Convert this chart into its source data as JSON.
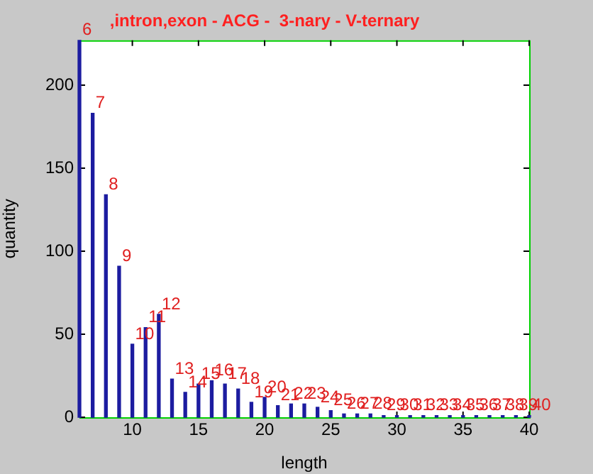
{
  "chart_data": {
    "type": "bar",
    "title": ",intron,exon - ACG -  3-nary - V-ternary",
    "xlabel": "length",
    "ylabel": "quantity",
    "x": [
      6,
      7,
      8,
      9,
      10,
      11,
      12,
      13,
      14,
      15,
      16,
      17,
      18,
      19,
      20,
      21,
      22,
      23,
      24,
      25,
      26,
      27,
      28,
      29,
      30,
      31,
      32,
      33,
      34,
      35,
      36,
      37,
      38,
      39,
      40
    ],
    "values": [
      227,
      183,
      134,
      91,
      44,
      54,
      62,
      23,
      15,
      20,
      22,
      20,
      17,
      9,
      12,
      7,
      8,
      8,
      6,
      4,
      2,
      2,
      2,
      1,
      1,
      1,
      1,
      1,
      1,
      1,
      1,
      1,
      1,
      1,
      1
    ],
    "annotations": [
      {
        "text": "6",
        "x": 6,
        "y": 227
      },
      {
        "text": "7",
        "x": 7,
        "y": 183
      },
      {
        "text": "8",
        "x": 8,
        "y": 134
      },
      {
        "text": "9",
        "x": 9,
        "y": 91
      },
      {
        "text": "10",
        "x": 10,
        "y": 44
      },
      {
        "text": "11",
        "x": 11,
        "y": 54
      },
      {
        "text": "12",
        "x": 12,
        "y": 62
      },
      {
        "text": "13",
        "x": 13,
        "y": 23
      },
      {
        "text": "14",
        "x": 14,
        "y": 15
      },
      {
        "text": "15",
        "x": 15,
        "y": 20
      },
      {
        "text": "16",
        "x": 16,
        "y": 22
      },
      {
        "text": "17",
        "x": 17,
        "y": 20
      },
      {
        "text": "18",
        "x": 18,
        "y": 17
      },
      {
        "text": "19",
        "x": 19,
        "y": 9
      },
      {
        "text": "20",
        "x": 20,
        "y": 12
      },
      {
        "text": "21",
        "x": 21,
        "y": 7
      },
      {
        "text": "22",
        "x": 22,
        "y": 8
      },
      {
        "text": "23",
        "x": 23,
        "y": 8
      },
      {
        "text": "24",
        "x": 24,
        "y": 6
      },
      {
        "text": "25",
        "x": 25,
        "y": 4
      },
      {
        "text": "26",
        "x": 26,
        "y": 2
      },
      {
        "text": "27",
        "x": 27,
        "y": 2
      },
      {
        "text": "28",
        "x": 28,
        "y": 2
      },
      {
        "text": "29",
        "x": 29,
        "y": 1
      },
      {
        "text": "30",
        "x": 30,
        "y": 1
      },
      {
        "text": "31",
        "x": 31,
        "y": 1
      },
      {
        "text": "32",
        "x": 32,
        "y": 1
      },
      {
        "text": "33",
        "x": 33,
        "y": 1
      },
      {
        "text": "34",
        "x": 34,
        "y": 1
      },
      {
        "text": "35",
        "x": 35,
        "y": 1
      },
      {
        "text": "36",
        "x": 36,
        "y": 1
      },
      {
        "text": "37",
        "x": 37,
        "y": 1
      },
      {
        "text": "38",
        "x": 38,
        "y": 1
      },
      {
        "text": "39",
        "x": 39,
        "y": 1
      },
      {
        "text": "40",
        "x": 40,
        "y": 1
      }
    ],
    "color": "#1c1ca0",
    "xlim": [
      6,
      40
    ],
    "xticks": [
      10,
      15,
      20,
      25,
      30,
      35,
      40
    ],
    "ylim": [
      0,
      227
    ],
    "yticks": [
      0,
      50,
      100,
      150,
      200
    ],
    "grid": false,
    "legend": false
  }
}
